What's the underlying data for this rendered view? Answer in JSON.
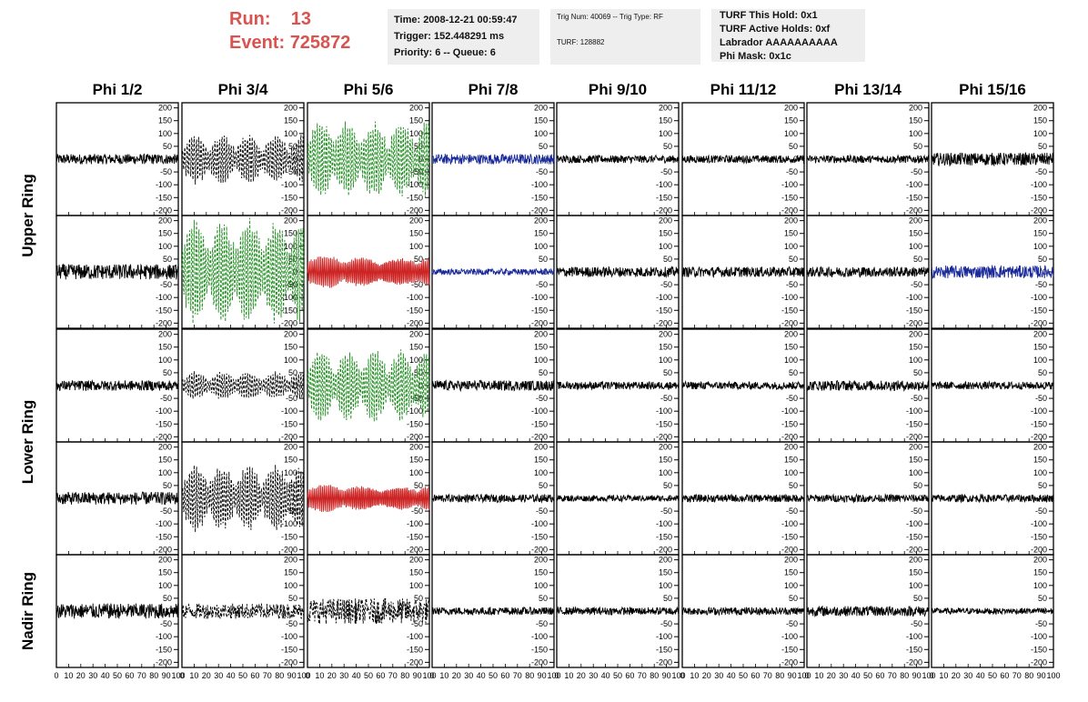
{
  "header": {
    "run_label": "Run:",
    "run_value": "13",
    "event_label": "Event:",
    "event_value": "725872",
    "time_box": [
      "Time: 2008-12-21 00:59:47",
      "Trigger: 152.448291 ms",
      "Priority: 6 -- Queue: 6"
    ],
    "trig_box": [
      "Trig Num: 40069 -- Trig Type: RF",
      "TURF: 128882"
    ],
    "turf_box": [
      "TURF This Hold: 0x1",
      "TURF Active Holds: 0xf",
      "Labrador AAAAAAAAAA",
      "Phi Mask: 0x1c"
    ]
  },
  "colors": {
    "header_red": "#d9534f",
    "trace_black": "#000000",
    "trace_green": "#1a8a1a",
    "trace_blue": "#1a2a9a",
    "trace_red": "#cc2222",
    "info_bg": "#eeeeee"
  },
  "chart_data": {
    "type": "line",
    "columns": [
      "Phi 1/2",
      "Phi 3/4",
      "Phi 5/6",
      "Phi 7/8",
      "Phi 9/10",
      "Phi 11/12",
      "Phi 13/14",
      "Phi 15/16"
    ],
    "ring_labels": [
      "Upper Ring",
      "Lower Ring",
      "Nadir Ring"
    ],
    "xlim": [
      0,
      100
    ],
    "ylim": [
      -220,
      220
    ],
    "x_ticks": [
      0,
      10,
      20,
      30,
      40,
      50,
      60,
      70,
      80,
      90,
      100
    ],
    "x_tick_labels": [
      "0",
      "10",
      "20",
      "30",
      "40",
      "50",
      "60",
      "70",
      "80",
      "90",
      "100"
    ],
    "y_ticks": [
      -200,
      -150,
      -100,
      -50,
      0,
      50,
      100,
      150,
      200
    ],
    "y_tick_labels": [
      "-200",
      "-150",
      "-100",
      "-50",
      "0",
      "50",
      "100",
      "150",
      "200"
    ],
    "panels": [
      [
        {
          "amp": 20,
          "color": "black",
          "style": "solid",
          "pattern": "noise"
        },
        {
          "amp": 90,
          "color": "black",
          "style": "dashed",
          "pattern": "packets"
        },
        {
          "amp": 140,
          "color": "green",
          "style": "dashed",
          "pattern": "packets"
        },
        {
          "amp": 20,
          "color": "blue",
          "style": "solid",
          "pattern": "noise"
        },
        {
          "amp": 15,
          "color": "black",
          "style": "solid",
          "pattern": "noise"
        },
        {
          "amp": 15,
          "color": "black",
          "style": "solid",
          "pattern": "noise"
        },
        {
          "amp": 15,
          "color": "black",
          "style": "solid",
          "pattern": "noise"
        },
        {
          "amp": 25,
          "color": "black",
          "style": "solid",
          "pattern": "noise"
        }
      ],
      [
        {
          "amp": 30,
          "color": "black",
          "style": "solid",
          "pattern": "noise"
        },
        {
          "amp": 190,
          "color": "green",
          "style": "dashed",
          "pattern": "packets"
        },
        {
          "amp": 60,
          "color": "red",
          "style": "solid",
          "pattern": "osc"
        },
        {
          "amp": 12,
          "color": "blue",
          "style": "solid",
          "pattern": "noise"
        },
        {
          "amp": 20,
          "color": "black",
          "style": "solid",
          "pattern": "noise"
        },
        {
          "amp": 20,
          "color": "black",
          "style": "solid",
          "pattern": "noise"
        },
        {
          "amp": 20,
          "color": "black",
          "style": "solid",
          "pattern": "noise"
        },
        {
          "amp": 25,
          "color": "blue",
          "style": "solid",
          "pattern": "noise"
        }
      ],
      [
        {
          "amp": 20,
          "color": "black",
          "style": "solid",
          "pattern": "noise"
        },
        {
          "amp": 50,
          "color": "black",
          "style": "dashed",
          "pattern": "packets"
        },
        {
          "amp": 130,
          "color": "green",
          "style": "dashed",
          "pattern": "packets"
        },
        {
          "amp": 20,
          "color": "black",
          "style": "solid",
          "pattern": "noise"
        },
        {
          "amp": 15,
          "color": "black",
          "style": "solid",
          "pattern": "noise"
        },
        {
          "amp": 15,
          "color": "black",
          "style": "solid",
          "pattern": "noise"
        },
        {
          "amp": 20,
          "color": "black",
          "style": "solid",
          "pattern": "noise"
        },
        {
          "amp": 15,
          "color": "black",
          "style": "solid",
          "pattern": "noise"
        }
      ],
      [
        {
          "amp": 25,
          "color": "black",
          "style": "solid",
          "pattern": "noise"
        },
        {
          "amp": 120,
          "color": "black",
          "style": "dashed",
          "pattern": "packets"
        },
        {
          "amp": 50,
          "color": "red",
          "style": "solid",
          "pattern": "osc"
        },
        {
          "amp": 15,
          "color": "black",
          "style": "solid",
          "pattern": "noise"
        },
        {
          "amp": 12,
          "color": "black",
          "style": "solid",
          "pattern": "noise"
        },
        {
          "amp": 15,
          "color": "black",
          "style": "solid",
          "pattern": "noise"
        },
        {
          "amp": 15,
          "color": "black",
          "style": "solid",
          "pattern": "noise"
        },
        {
          "amp": 15,
          "color": "black",
          "style": "solid",
          "pattern": "noise"
        }
      ],
      [
        {
          "amp": 30,
          "color": "black",
          "style": "solid",
          "pattern": "noise"
        },
        {
          "amp": 30,
          "color": "black",
          "style": "dashed",
          "pattern": "noise"
        },
        {
          "amp": 50,
          "color": "black",
          "style": "dashed",
          "pattern": "noise"
        },
        {
          "amp": 15,
          "color": "black",
          "style": "solid",
          "pattern": "noise"
        },
        {
          "amp": 15,
          "color": "black",
          "style": "solid",
          "pattern": "noise"
        },
        {
          "amp": 15,
          "color": "black",
          "style": "solid",
          "pattern": "noise"
        },
        {
          "amp": 20,
          "color": "black",
          "style": "solid",
          "pattern": "noise"
        },
        {
          "amp": 12,
          "color": "black",
          "style": "solid",
          "pattern": "noise"
        }
      ]
    ]
  }
}
